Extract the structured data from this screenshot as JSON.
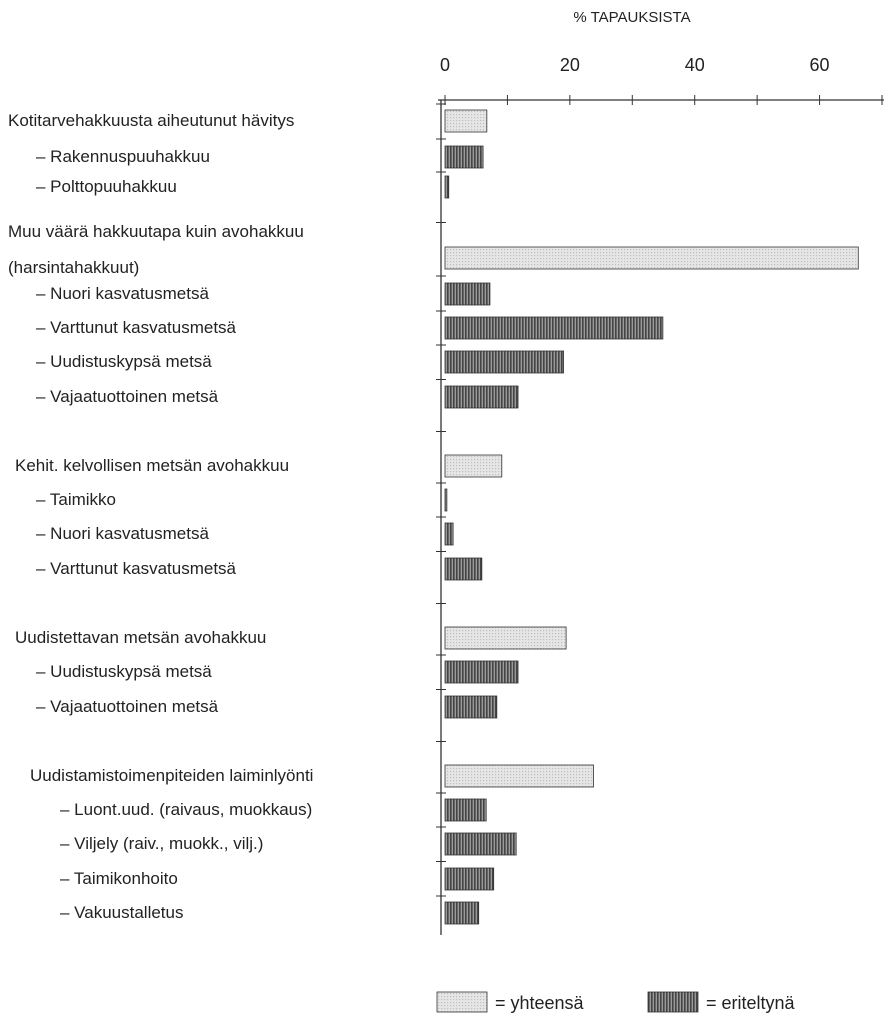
{
  "chart_data": {
    "type": "barh",
    "xlabel": "% TAPAUKSISTA",
    "categories": [
      "Kotitarvehakkuusta aiheutunut hävitys",
      "– Rakennuspuuhakkuu",
      "– Polttopuuhakkuu",
      "Muu väärä hakkuutapa kuin avohakkuu (harsintahakkuut)",
      "– Nuori kasvatusmetsä",
      "– Varttunut kasvatusmetsä",
      "– Uudistuskypsä metsä",
      "– Vajaatuottoinen metsä",
      "Kehit. kelvollisen metsän avohakkuu",
      "– Taimikko",
      "– Nuori kasvatusmetsä",
      "– Varttunut kasvatusmetsä",
      "Uudistettavan metsän avohakkuu",
      "– Uudistuskypsä metsä",
      "– Vajaatuottoinen metsä",
      "Uudistamistoimenpiteiden laiminlyönti",
      "– Luont.uud. (raivaus, muokkaus)",
      "– Viljely (raiv., muokk., vilj.)",
      "– Taimikonhoito",
      "– Vakuustalletus"
    ],
    "series": [
      {
        "name": "= yhteensä",
        "color": "#bdbdbd",
        "values": [
          6.7,
          null,
          null,
          66.2,
          null,
          null,
          null,
          null,
          9.1,
          null,
          null,
          null,
          19.4,
          null,
          null,
          23.8,
          null,
          null,
          null,
          null
        ]
      },
      {
        "name": "= eriteltynä",
        "color": "#444444",
        "values": [
          null,
          6.1,
          0.6,
          null,
          7.2,
          34.9,
          19.0,
          11.7,
          null,
          0.3,
          1.3,
          5.9,
          null,
          11.7,
          8.3,
          null,
          6.6,
          11.4,
          7.8,
          5.4
        ]
      }
    ],
    "xlim": [
      0,
      70
    ],
    "xticks": [
      0,
      20,
      40,
      60
    ],
    "xminorticks": [
      10,
      30,
      50,
      70
    ]
  }
}
